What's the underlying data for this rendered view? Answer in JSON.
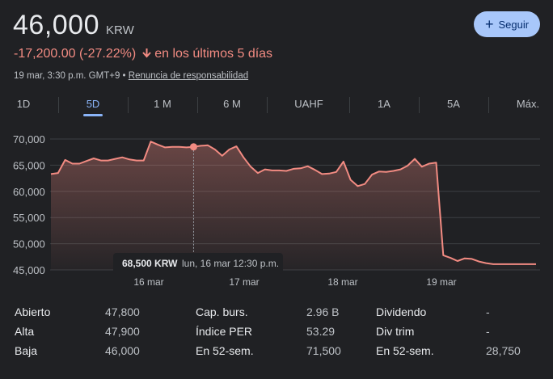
{
  "quote": {
    "price": "46,000",
    "currency": "KRW",
    "change": "-17,200.00 (-27.22%)",
    "change_period": "en los últimos 5 días",
    "timestamp": "19 mar, 3:30 p.m. GMT+9",
    "separator": " • ",
    "disclaimer": "Renuncia de responsabilidad"
  },
  "follow_button": {
    "label": "Seguir",
    "icon": "plus-icon"
  },
  "tabs": [
    {
      "label": "1D",
      "active": false
    },
    {
      "label": "5D",
      "active": true
    },
    {
      "label": "1 M",
      "active": false
    },
    {
      "label": "6 M",
      "active": false
    },
    {
      "label": "UAHF",
      "active": false
    },
    {
      "label": "1A",
      "active": false
    },
    {
      "label": "5A",
      "active": false
    },
    {
      "label": "Máx.",
      "active": false
    }
  ],
  "chart_data": {
    "type": "area",
    "y_ticks": [
      "70,000",
      "65,000",
      "60,000",
      "55,000",
      "50,000",
      "45,000"
    ],
    "ylim": [
      45000,
      70000
    ],
    "x_ticks": [
      "16 mar",
      "17 mar",
      "18 mar",
      "19 mar"
    ],
    "values": [
      63300,
      63500,
      66000,
      65300,
      65300,
      65800,
      66300,
      65900,
      65900,
      66200,
      66500,
      66100,
      65900,
      65900,
      69500,
      68900,
      68400,
      68500,
      68500,
      68400,
      68500,
      68700,
      68800,
      68000,
      66800,
      68000,
      68600,
      66500,
      64700,
      63500,
      64200,
      64000,
      64000,
      63900,
      64300,
      64400,
      64800,
      64100,
      63300,
      63400,
      63700,
      65700,
      62200,
      61000,
      61400,
      63200,
      63800,
      63700,
      63900,
      64200,
      64900,
      66200,
      64700,
      65300,
      65500,
      47800,
      47300,
      46700,
      47200,
      47100,
      46600,
      46300,
      46100,
      46100,
      46100,
      46100,
      46100,
      46100,
      46100
    ],
    "line_color": "#f28b82",
    "tooltip": {
      "value": "68,500 KRW",
      "date": "lun, 16 mar 12:30 p.m.",
      "index": 20
    }
  },
  "stats": [
    {
      "label": "Abierto",
      "value": "47,800"
    },
    {
      "label": "Alta",
      "value": "47,900"
    },
    {
      "label": "Baja",
      "value": "46,000"
    },
    {
      "label": "Cap. burs.",
      "value": "2.96 B"
    },
    {
      "label": "Índice PER",
      "value": "53.29"
    },
    {
      "label": "En 52-sem.",
      "value": "71,500"
    },
    {
      "label": "Dividendo",
      "value": "-"
    },
    {
      "label": "Div trim",
      "value": "-"
    },
    {
      "label": "En 52-sem.",
      "value": "28,750"
    }
  ]
}
